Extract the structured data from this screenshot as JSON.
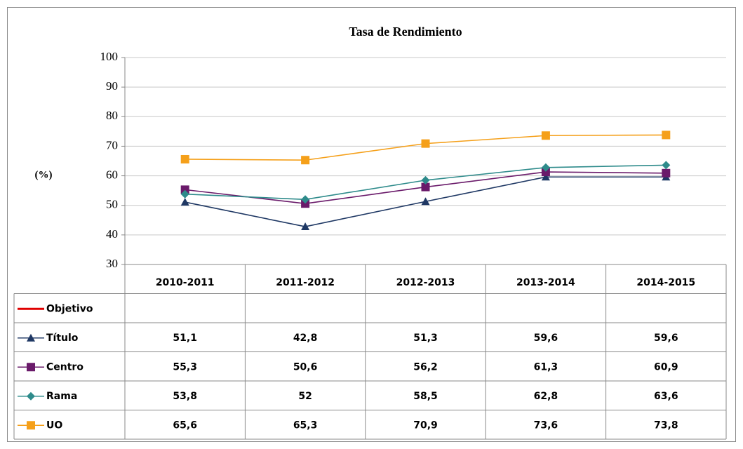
{
  "chart_data": {
    "type": "line",
    "title": "Tasa de Rendimiento",
    "y_label": "(%)",
    "categories": [
      "2010-2011",
      "2011-2012",
      "2012-2013",
      "2013-2014",
      "2014-2015"
    ],
    "ylim": [
      30,
      100
    ],
    "yticks": [
      30,
      40,
      50,
      60,
      70,
      80,
      90,
      100
    ],
    "grid": true,
    "data_table": true,
    "series": [
      {
        "name": "Objetivo",
        "color": "#e00000",
        "marker": "none",
        "values": [
          null,
          null,
          null,
          null,
          null
        ]
      },
      {
        "name": "Título",
        "color": "#1f3864",
        "marker": "triangle",
        "values": [
          51.1,
          42.8,
          51.3,
          59.6,
          59.6
        ],
        "value_labels": [
          "51,1",
          "42,8",
          "51,3",
          "59,6",
          "59,6"
        ]
      },
      {
        "name": "Centro",
        "color": "#6a1a6a",
        "marker": "square",
        "values": [
          55.3,
          50.6,
          56.2,
          61.3,
          60.9
        ],
        "value_labels": [
          "55,3",
          "50,6",
          "56,2",
          "61,3",
          "60,9"
        ]
      },
      {
        "name": "Rama",
        "color": "#2e8b8b",
        "marker": "diamond",
        "values": [
          53.8,
          52,
          58.5,
          62.8,
          63.6
        ],
        "value_labels": [
          "53,8",
          "52",
          "58,5",
          "62,8",
          "63,6"
        ]
      },
      {
        "name": "UO",
        "color": "#f5a01a",
        "marker": "square",
        "values": [
          65.6,
          65.3,
          70.9,
          73.6,
          73.8
        ],
        "value_labels": [
          "65,6",
          "65,3",
          "70,9",
          "73,6",
          "73,8"
        ]
      }
    ]
  }
}
